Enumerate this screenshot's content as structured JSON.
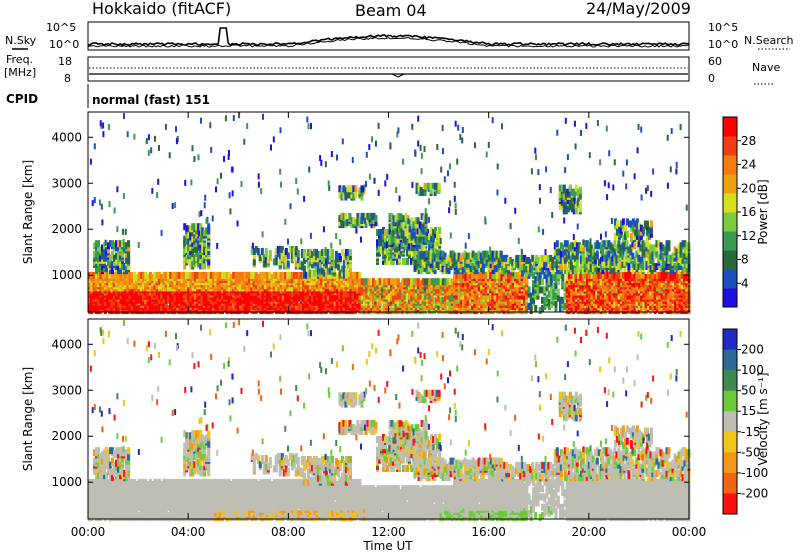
{
  "header": {
    "title": "Hokkaido (fitACF)",
    "beam": "Beam 04",
    "date": "24/May/2009"
  },
  "top_panels": {
    "nsky_label": "N.Sky",
    "nsearch_label": "N.Search",
    "noise_ticks": [
      "10^5",
      "10^0"
    ],
    "freq_label_1": "Freq.",
    "freq_label_2": "[MHz]",
    "freq_ticks": [
      "18",
      "8"
    ],
    "nave_label": "Nave",
    "nave_ticks": [
      "60",
      "0"
    ],
    "cpid_label": "CPID",
    "cpid_value": "normal (fast) 151"
  },
  "chart_data": [
    {
      "type": "heatmap",
      "name": "power",
      "ylabel": "Slant Range [km]",
      "xlabel": "Time UT",
      "x_ticks": [
        "00:00",
        "04:00",
        "08:00",
        "12:00",
        "16:00",
        "20:00",
        "00:00"
      ],
      "x_hours": [
        0,
        4,
        8,
        12,
        16,
        20,
        24
      ],
      "y_ticks": [
        1000,
        2000,
        3000,
        4000
      ],
      "ylim": [
        200,
        4550
      ],
      "xlim_hours": [
        0,
        24
      ],
      "colorbar": {
        "label": "Power [dB]",
        "ticks": [
          4,
          8,
          12,
          16,
          20,
          24,
          28
        ],
        "range": [
          0,
          32
        ],
        "colors": [
          "#2010e0",
          "#1a4fc0",
          "#2a6a3a",
          "#3a9a50",
          "#7acc40",
          "#d7e020",
          "#f0a010",
          "#f57a10",
          "#f04010",
          "#ff0000"
        ]
      }
    },
    {
      "type": "heatmap",
      "name": "velocity",
      "ylabel": "Slant Range [km]",
      "xlabel": "Time UT",
      "x_ticks": [
        "00:00",
        "04:00",
        "08:00",
        "12:00",
        "16:00",
        "20:00",
        "00:00"
      ],
      "x_hours": [
        0,
        4,
        8,
        12,
        16,
        20,
        24
      ],
      "y_ticks": [
        1000,
        2000,
        3000,
        4000
      ],
      "ylim": [
        200,
        4550
      ],
      "xlim_hours": [
        0,
        24
      ],
      "ground_scatter_color": "#bebeb4",
      "colorbar": {
        "label": "Velocity [m s^-1]",
        "ticks": [
          "200",
          "100",
          "50",
          "15",
          "-15",
          "-50",
          "-100",
          "-200"
        ],
        "colors": [
          "#1f2bc4",
          "#2c6a9a",
          "#3f8a52",
          "#6acc3a",
          "#bdbdb2",
          "#f0c418",
          "#f59818",
          "#f06412",
          "#ff1010"
        ]
      }
    }
  ],
  "axes": {
    "xlabel": "Time UT",
    "ylabel": "Slant Range [km]",
    "power_label": "Power [dB]",
    "velocity_label": "Velocity [m s⁻¹]"
  }
}
